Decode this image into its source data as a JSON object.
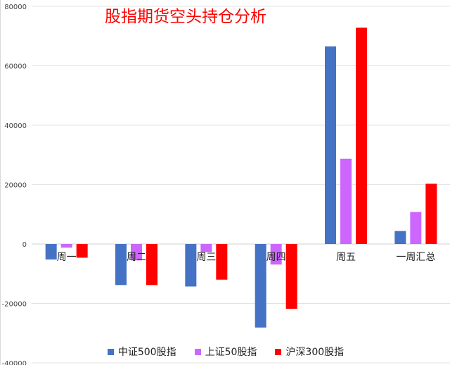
{
  "chart_data": {
    "type": "bar",
    "title": "股指期货空头持仓分析",
    "categories": [
      "周一",
      "周二",
      "周三",
      "周四",
      "周五",
      "一周汇总"
    ],
    "series": [
      {
        "name": "中证500股指",
        "color": "#4472c4",
        "values": [
          -5200,
          -13800,
          -14300,
          -28100,
          66500,
          4400
        ]
      },
      {
        "name": "上证50股指",
        "color": "#cc66ff",
        "values": [
          -1200,
          -5500,
          -2700,
          -6900,
          28700,
          10800
        ]
      },
      {
        "name": "沪深300股指",
        "color": "#ff0000",
        "values": [
          -4600,
          -13800,
          -12000,
          -21800,
          72800,
          20300
        ]
      }
    ],
    "yticks": [
      "-40000",
      "-20000",
      "0",
      "20000",
      "40000",
      "60000",
      "80000"
    ],
    "ylim": [
      -40000,
      80000
    ],
    "grid": true,
    "legend_position": "bottom"
  }
}
